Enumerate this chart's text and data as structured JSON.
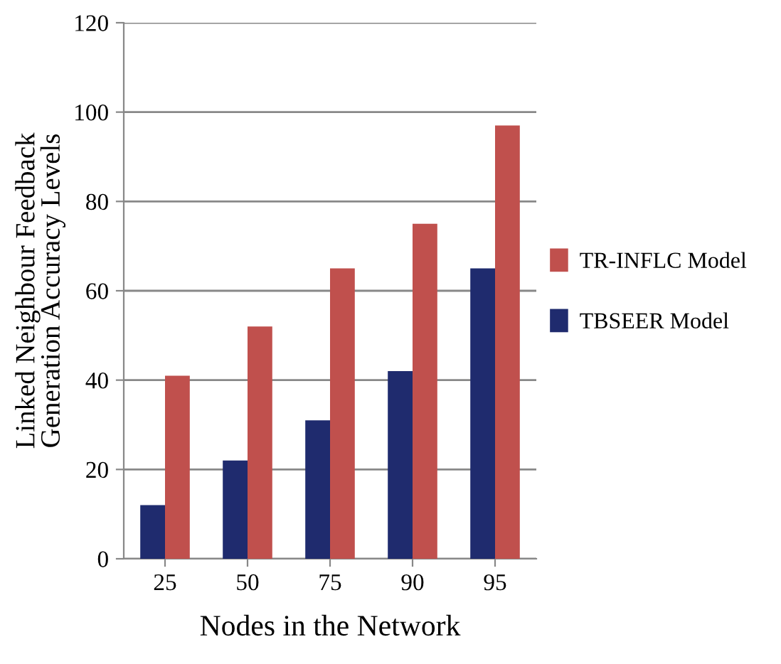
{
  "chart_data": {
    "type": "bar",
    "xlabel": "Nodes in the Network",
    "ylabel": "Linked Neighbour Feedback\nGeneration Accuracy Levels",
    "categories": [
      "25",
      "50",
      "75",
      "90",
      "95"
    ],
    "series": [
      {
        "name": "TBSEER Model",
        "color": "#1f2b6e",
        "values": [
          12,
          22,
          31,
          42,
          65
        ]
      },
      {
        "name": "TR-INFLC Model",
        "color": "#c0504d",
        "values": [
          41,
          52,
          65,
          75,
          97
        ]
      }
    ],
    "ylim": [
      0,
      120
    ],
    "yticks": [
      0,
      20,
      40,
      60,
      80,
      100,
      120
    ],
    "grid": "y",
    "legend": "right"
  }
}
